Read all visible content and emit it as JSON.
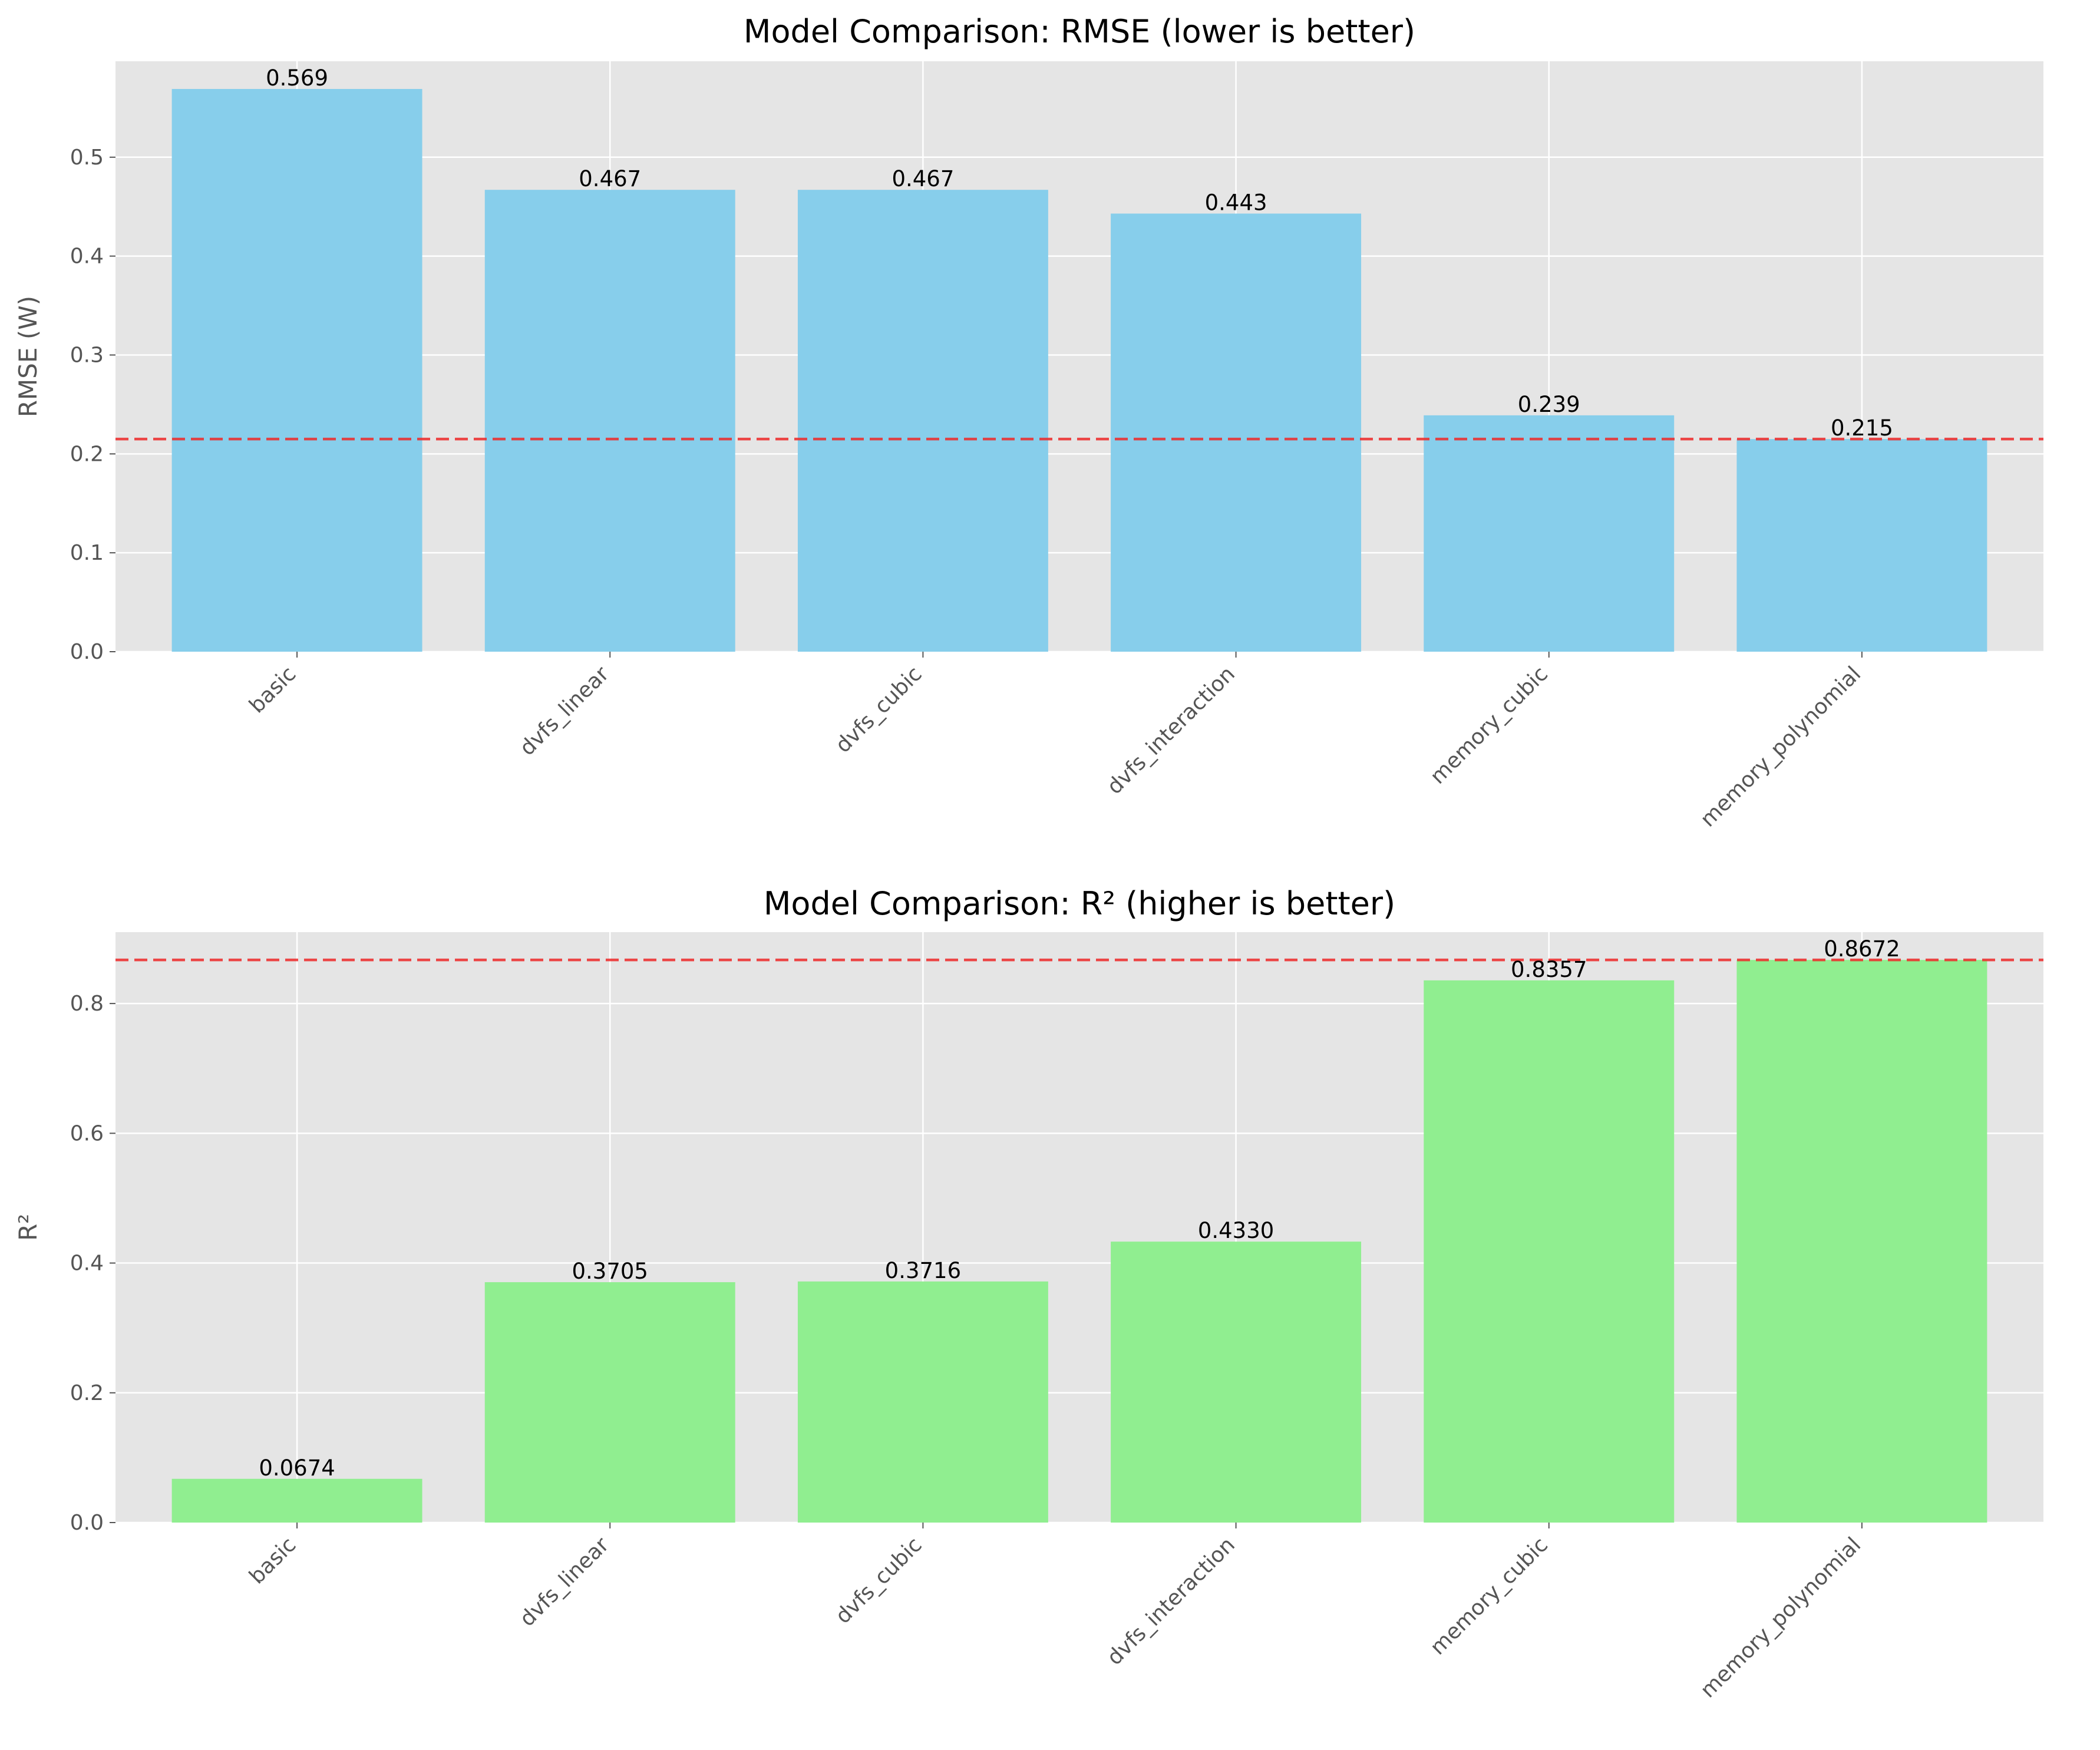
{
  "chart_data": [
    {
      "type": "bar",
      "title": "Model Comparison: RMSE (lower is better)",
      "xlabel": "",
      "ylabel": "RMSE (W)",
      "categories": [
        "basic",
        "dvfs_linear",
        "dvfs_cubic",
        "dvfs_interaction",
        "memory_cubic",
        "memory_polynomial"
      ],
      "values": [
        0.569,
        0.467,
        0.467,
        0.443,
        0.239,
        0.215
      ],
      "value_labels": [
        "0.569",
        "0.467",
        "0.467",
        "0.443",
        "0.239",
        "0.215"
      ],
      "ylim": [
        0,
        0.597
      ],
      "yticks": [
        0.0,
        0.1,
        0.2,
        0.3,
        0.4,
        0.5
      ],
      "ytick_labels": [
        "0.0",
        "0.1",
        "0.2",
        "0.3",
        "0.4",
        "0.5"
      ],
      "reference_line": 0.215,
      "bar_color": "#87ceeb",
      "reference_color": "#ee2a2a",
      "grid": true
    },
    {
      "type": "bar",
      "title": "Model Comparison: R² (higher is better)",
      "xlabel": "",
      "ylabel": "R²",
      "categories": [
        "basic",
        "dvfs_linear",
        "dvfs_cubic",
        "dvfs_interaction",
        "memory_cubic",
        "memory_polynomial"
      ],
      "values": [
        0.0674,
        0.3705,
        0.3716,
        0.433,
        0.8357,
        0.8672
      ],
      "value_labels": [
        "0.0674",
        "0.3705",
        "0.3716",
        "0.4330",
        "0.8357",
        "0.8672"
      ],
      "ylim": [
        0,
        0.91
      ],
      "yticks": [
        0.0,
        0.2,
        0.4,
        0.6,
        0.8
      ],
      "ytick_labels": [
        "0.0",
        "0.2",
        "0.4",
        "0.6",
        "0.8"
      ],
      "reference_line": 0.8672,
      "bar_color": "#90ee90",
      "reference_color": "#ee2a2a",
      "grid": true
    }
  ]
}
